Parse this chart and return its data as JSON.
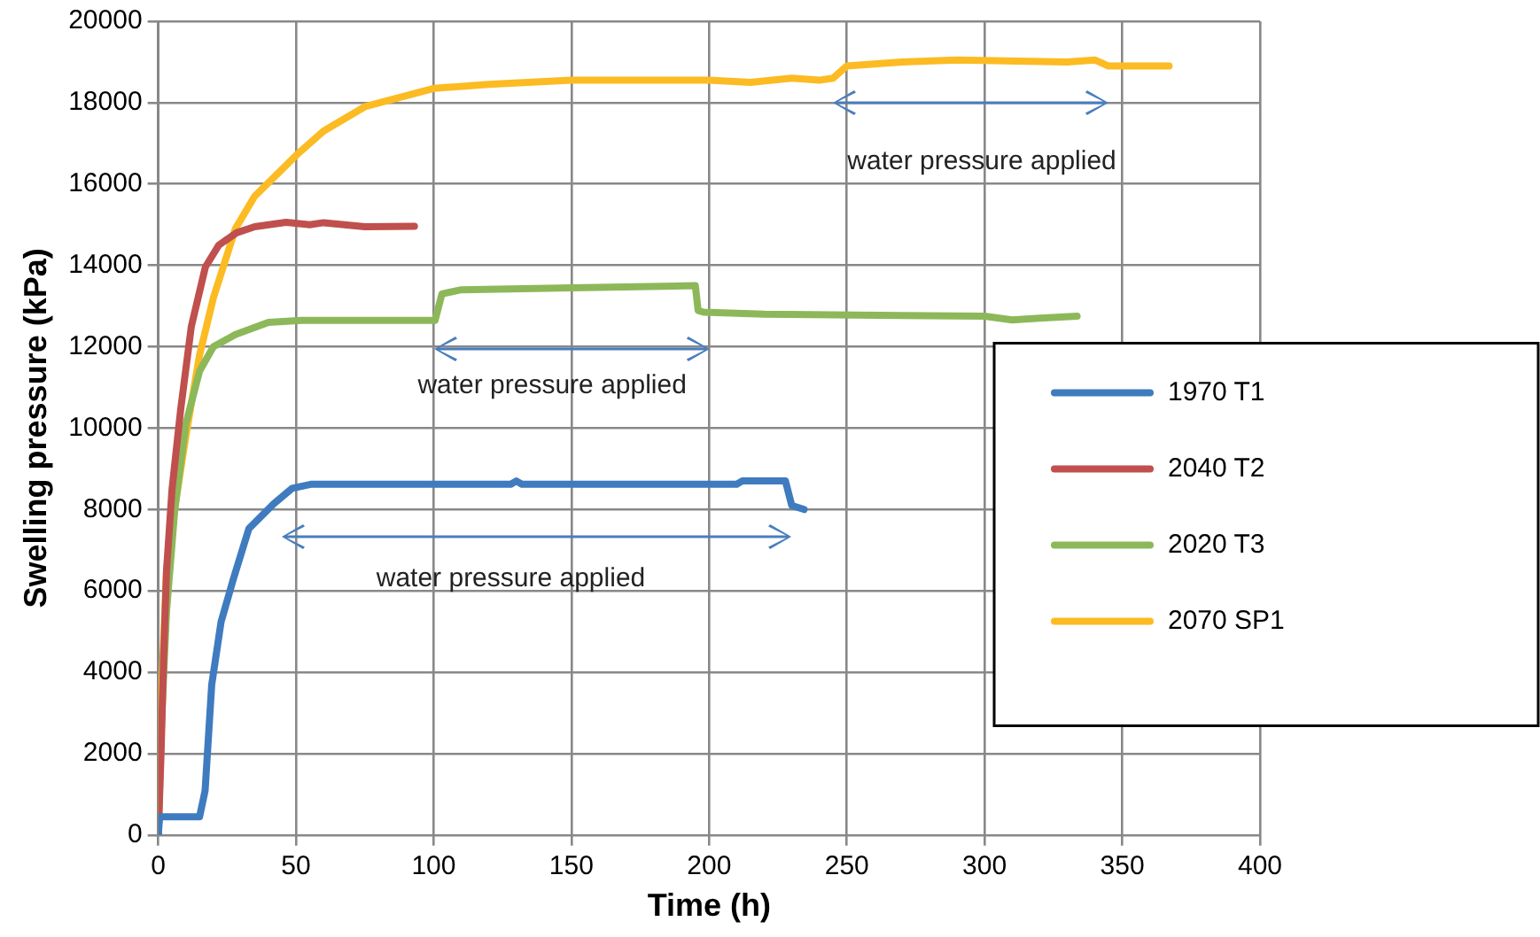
{
  "chart_data": {
    "type": "line",
    "xlabel": "Time (h)",
    "ylabel": "Swelling pressure (kPa)",
    "xlim": [
      0,
      400
    ],
    "xticks": [
      0,
      50,
      100,
      150,
      200,
      250,
      300,
      350,
      400
    ],
    "ylim": [
      0,
      20000
    ],
    "yticks": [
      0,
      2000,
      4000,
      6000,
      8000,
      10000,
      12000,
      14000,
      16000,
      18000,
      20000
    ],
    "grid": true,
    "legend": "right",
    "marker": "none",
    "line_style": "solid",
    "annotations": [
      "water pressure applied",
      "water pressure applied",
      "water pressure applied"
    ],
    "series": [
      {
        "name": "1970 T1",
        "color": "#3f7bbf",
        "x": [
          0,
          0.5,
          15,
          17,
          19.4,
          22.8,
          27.3,
          32.9,
          41.9,
          48.6,
          55.4,
          100,
          128,
          130,
          132,
          160,
          200,
          210,
          212,
          225,
          227.7,
          230,
          234.5
        ],
        "values": [
          0,
          450,
          450,
          1090,
          3690,
          5240,
          6300,
          7530,
          8140,
          8520,
          8620,
          8620,
          8620,
          8700,
          8620,
          8620,
          8620,
          8620,
          8700,
          8700,
          8700,
          8100,
          8000
        ]
      },
      {
        "name": "2040 T2",
        "color": "#c0504d",
        "x": [
          0,
          1,
          2,
          3,
          5,
          8.1,
          12,
          17.1,
          22,
          28.4,
          35,
          46.4,
          55,
          60,
          75,
          93
        ],
        "values": [
          0,
          2000,
          4500,
          6500,
          8500,
          10440,
          12500,
          13960,
          14500,
          14800,
          14950,
          15060,
          15000,
          15050,
          14950,
          14960
        ]
      },
      {
        "name": "2020 T3",
        "color": "#8db859",
        "x": [
          0,
          1,
          3,
          6,
          10,
          15,
          20,
          28,
          40,
          52,
          100.5,
          103,
          110,
          150,
          195,
          196,
          198,
          220,
          300,
          310,
          320,
          333.6
        ],
        "values": [
          0,
          2500,
          5500,
          8000,
          10100,
          11400,
          12000,
          12300,
          12600,
          12650,
          12650,
          13300,
          13400,
          13450,
          13500,
          12890,
          12850,
          12800,
          12750,
          12660,
          12700,
          12750
        ]
      },
      {
        "name": "2070 SP1",
        "color": "#fcbb22",
        "x": [
          0,
          0.5,
          1.5,
          3,
          5,
          10,
          15,
          20,
          28,
          35,
          50,
          60,
          75,
          100,
          120,
          150,
          200,
          215,
          230,
          240,
          245,
          250,
          270,
          290,
          330,
          340,
          345,
          367
        ],
        "values": [
          0,
          2500,
          4000,
          6500,
          7600,
          9800,
          11800,
          13200,
          14900,
          15700,
          16700,
          17300,
          17900,
          18350,
          18450,
          18550,
          18550,
          18500,
          18600,
          18550,
          18600,
          18900,
          19000,
          19050,
          19000,
          19050,
          18900,
          18900
        ]
      }
    ]
  }
}
